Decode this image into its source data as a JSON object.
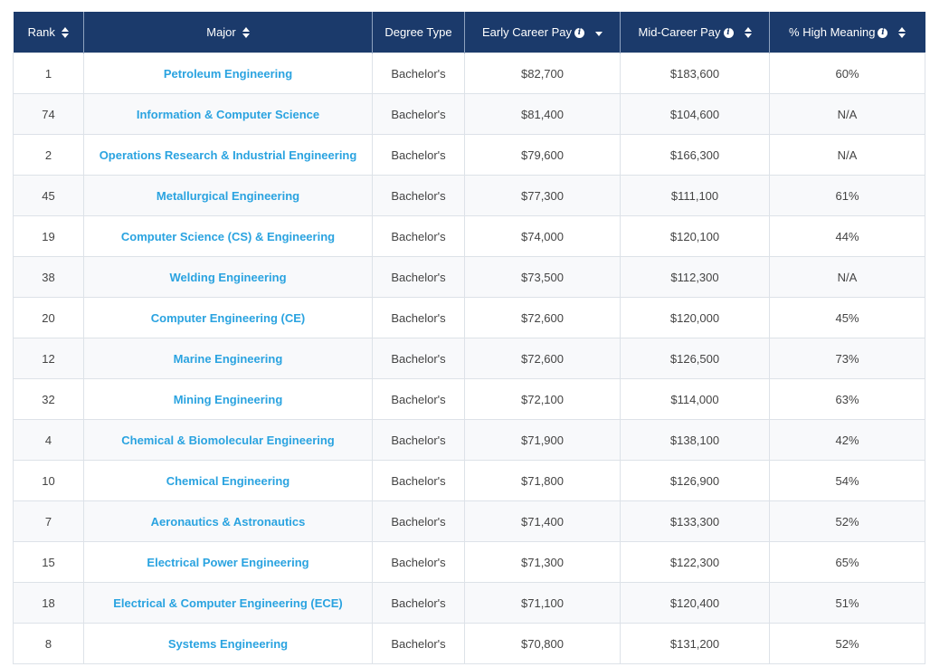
{
  "columns": {
    "rank": "Rank",
    "major": "Major",
    "degree": "Degree Type",
    "early": "Early Career Pay",
    "mid": "Mid-Career Pay",
    "meaning": "% High Meaning"
  },
  "icons": {
    "sort": "sort-arrows-icon",
    "sort_desc": "sort-desc-icon",
    "info": "info-icon"
  },
  "colors": {
    "header_bg": "#1b3a6b",
    "link": "#2aa3e0"
  },
  "rows": [
    {
      "rank": "1",
      "major": "Petroleum Engineering",
      "degree": "Bachelor's",
      "early": "$82,700",
      "mid": "$183,600",
      "meaning": "60%"
    },
    {
      "rank": "74",
      "major": "Information & Computer Science",
      "degree": "Bachelor's",
      "early": "$81,400",
      "mid": "$104,600",
      "meaning": "N/A"
    },
    {
      "rank": "2",
      "major": "Operations Research & Industrial Engineering",
      "degree": "Bachelor's",
      "early": "$79,600",
      "mid": "$166,300",
      "meaning": "N/A"
    },
    {
      "rank": "45",
      "major": "Metallurgical Engineering",
      "degree": "Bachelor's",
      "early": "$77,300",
      "mid": "$111,100",
      "meaning": "61%"
    },
    {
      "rank": "19",
      "major": "Computer Science (CS) & Engineering",
      "degree": "Bachelor's",
      "early": "$74,000",
      "mid": "$120,100",
      "meaning": "44%"
    },
    {
      "rank": "38",
      "major": "Welding Engineering",
      "degree": "Bachelor's",
      "early": "$73,500",
      "mid": "$112,300",
      "meaning": "N/A"
    },
    {
      "rank": "20",
      "major": "Computer Engineering (CE)",
      "degree": "Bachelor's",
      "early": "$72,600",
      "mid": "$120,000",
      "meaning": "45%"
    },
    {
      "rank": "12",
      "major": "Marine Engineering",
      "degree": "Bachelor's",
      "early": "$72,600",
      "mid": "$126,500",
      "meaning": "73%"
    },
    {
      "rank": "32",
      "major": "Mining Engineering",
      "degree": "Bachelor's",
      "early": "$72,100",
      "mid": "$114,000",
      "meaning": "63%"
    },
    {
      "rank": "4",
      "major": "Chemical & Biomolecular Engineering",
      "degree": "Bachelor's",
      "early": "$71,900",
      "mid": "$138,100",
      "meaning": "42%"
    },
    {
      "rank": "10",
      "major": "Chemical Engineering",
      "degree": "Bachelor's",
      "early": "$71,800",
      "mid": "$126,900",
      "meaning": "54%"
    },
    {
      "rank": "7",
      "major": "Aeronautics & Astronautics",
      "degree": "Bachelor's",
      "early": "$71,400",
      "mid": "$133,300",
      "meaning": "52%"
    },
    {
      "rank": "15",
      "major": "Electrical Power Engineering",
      "degree": "Bachelor's",
      "early": "$71,300",
      "mid": "$122,300",
      "meaning": "65%"
    },
    {
      "rank": "18",
      "major": "Electrical & Computer Engineering (ECE)",
      "degree": "Bachelor's",
      "early": "$71,100",
      "mid": "$120,400",
      "meaning": "51%"
    },
    {
      "rank": "8",
      "major": "Systems Engineering",
      "degree": "Bachelor's",
      "early": "$70,800",
      "mid": "$131,200",
      "meaning": "52%"
    }
  ]
}
